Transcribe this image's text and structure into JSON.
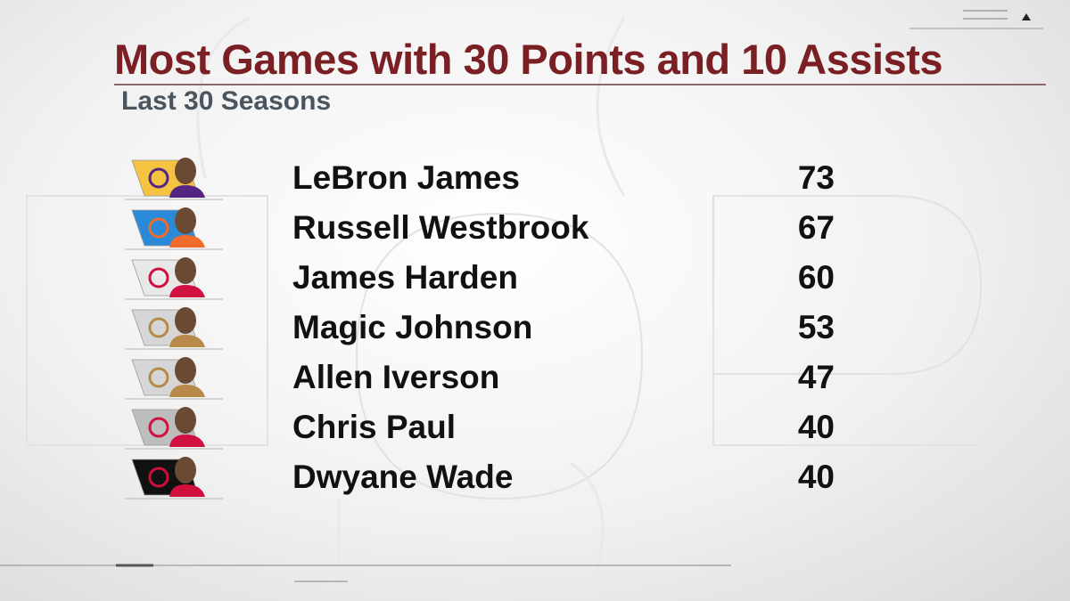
{
  "chart_data": {
    "type": "table",
    "title": "Most Games with 30 Points and 10 Assists",
    "subtitle": "Last 30 Seasons",
    "rows": [
      {
        "player": "LeBron James",
        "value": 73,
        "team_color": "#f5c242",
        "accent": "#552583",
        "logo": "lakers-logo-icon"
      },
      {
        "player": "Russell Westbrook",
        "value": 67,
        "team_color": "#2a8ad8",
        "accent": "#f26b2b",
        "logo": "thunder-logo-icon"
      },
      {
        "player": "James Harden",
        "value": 60,
        "team_color": "#e8e8e8",
        "accent": "#ce1141",
        "logo": "rockets-logo-icon"
      },
      {
        "player": "Magic Johnson",
        "value": 53,
        "team_color": "#d6d6d6",
        "accent": "#b88a4a",
        "logo": "hall-of-fame-logo-icon"
      },
      {
        "player": "Allen Iverson",
        "value": 47,
        "team_color": "#d6d6d6",
        "accent": "#b88a4a",
        "logo": "hall-of-fame-logo-icon"
      },
      {
        "player": "Chris Paul",
        "value": 40,
        "team_color": "#bdbdbd",
        "accent": "#ce1141",
        "logo": "rockets-logo-icon"
      },
      {
        "player": "Dwyane Wade",
        "value": 40,
        "team_color": "#111111",
        "accent": "#d0103a",
        "logo": "heat-logo-icon"
      }
    ]
  }
}
